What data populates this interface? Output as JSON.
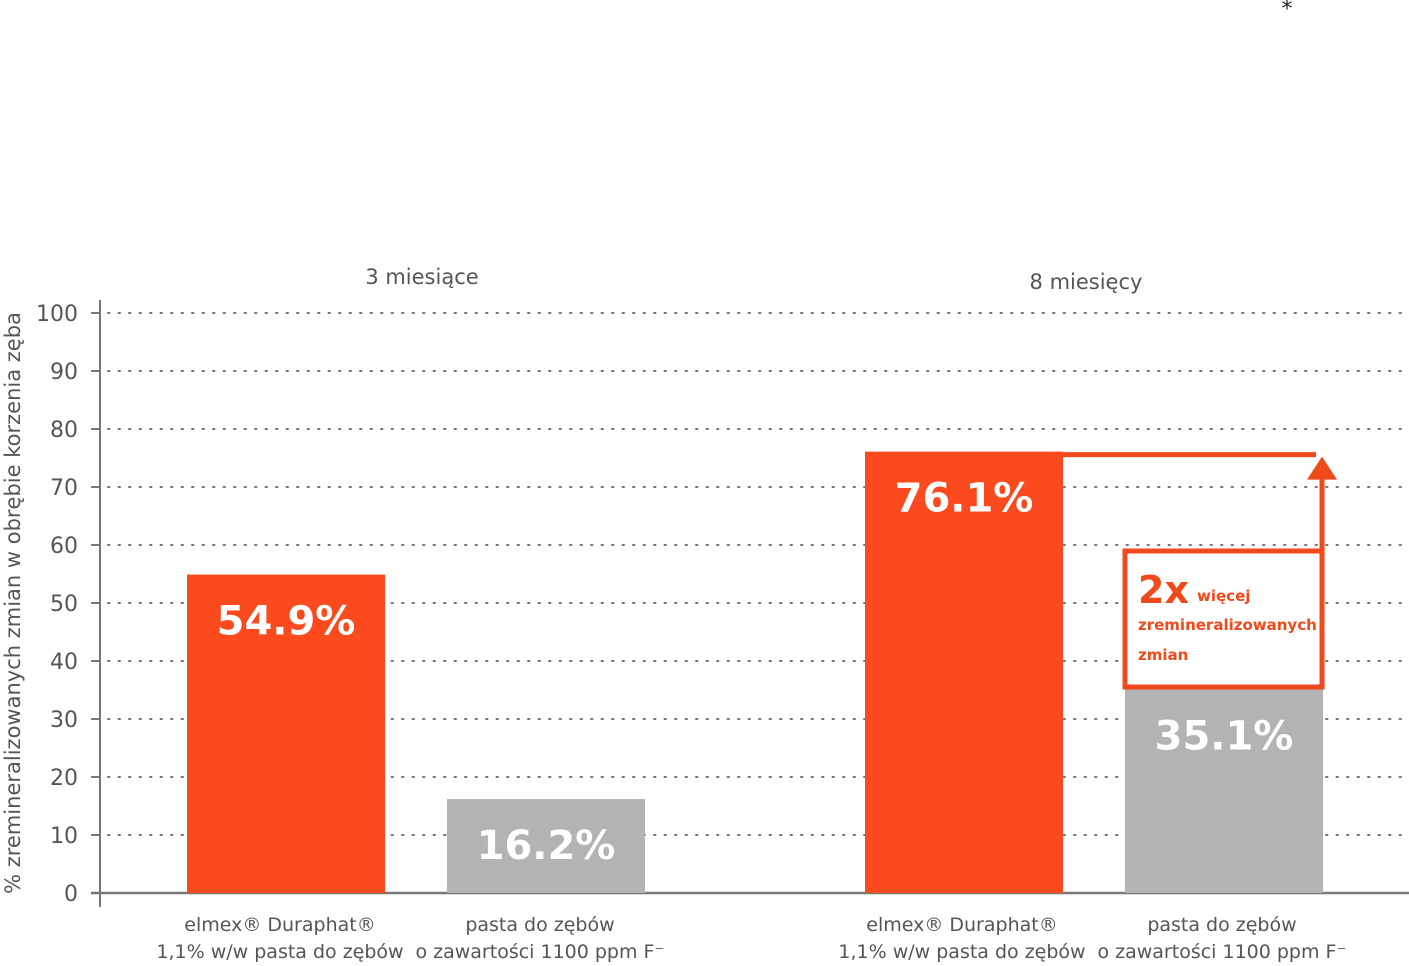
{
  "chart_data": {
    "type": "bar",
    "footnote_marker": "*",
    "ylabel": "% zremineralizowanych zmian w obrębie korzenia zęba",
    "ylim": [
      0,
      100
    ],
    "yticks": [
      0,
      10,
      20,
      30,
      40,
      50,
      60,
      70,
      80,
      90,
      100
    ],
    "grid": true,
    "groups": [
      {
        "name": "3 miesiące",
        "bars": [
          {
            "category": "elmex® Duraphat®\n1,1% w/w pasta do zębów",
            "line1": "elmex® Duraphat®",
            "line2": "1,1% w/w pasta do zębów",
            "value": 54.9,
            "label": "54.9%",
            "color": "#fa4a1e"
          },
          {
            "category": "pasta do zębów\no zawartości 1100 ppm F-",
            "line1": "pasta do zębów",
            "line2": "o zawartości 1100 ppm F⁻",
            "value": 16.2,
            "label": "16.2%",
            "color": "#b3b3b3"
          }
        ]
      },
      {
        "name": "8 miesięcy",
        "bars": [
          {
            "category": "elmex® Duraphat®\n1,1% w/w pasta do zębów",
            "line1": "elmex® Duraphat®",
            "line2": "1,1% w/w pasta do zębów",
            "value": 76.1,
            "label": "76.1%",
            "color": "#fa4a1e"
          },
          {
            "category": "pasta do zębów\no zawartości 1100 ppm F-",
            "line1": "pasta do zębów",
            "line2": "o zawartości 1100 ppm F⁻",
            "value": 35.1,
            "label": "35.1%",
            "color": "#b3b3b3"
          }
        ]
      }
    ],
    "annotation": {
      "big": "2x",
      "small1": "więcej",
      "small2": "zremineralizowanych",
      "small3": "zmian",
      "color": "#f04a1c"
    }
  }
}
